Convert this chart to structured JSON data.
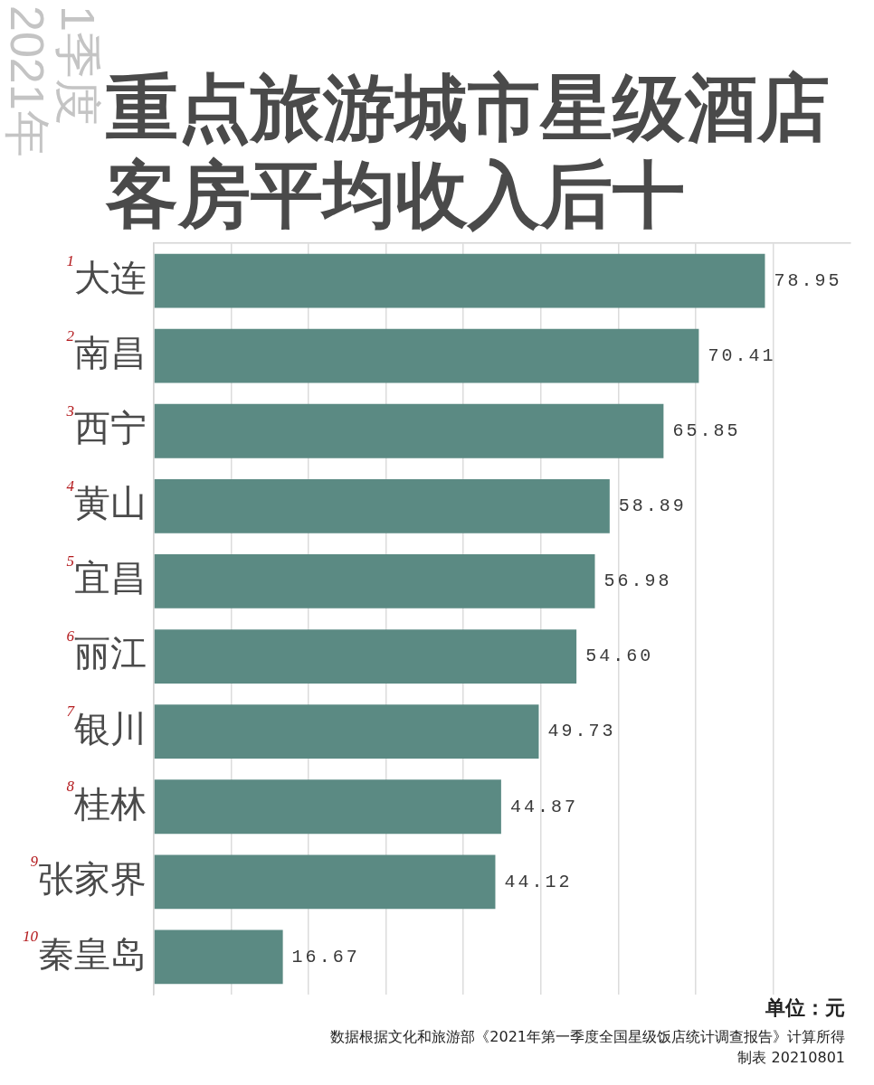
{
  "chart_data": {
    "type": "bar",
    "orientation": "horizontal",
    "title": "重点旅游城市星级酒店客房平均收入后十",
    "subtitle": "2021年 1季度",
    "categories": [
      "大连",
      "南昌",
      "西宁",
      "黄山",
      "宜昌",
      "丽江",
      "银川",
      "桂林",
      "张家界",
      "秦皇岛"
    ],
    "values": [
      78.95,
      70.41,
      65.85,
      58.89,
      56.98,
      54.6,
      49.73,
      44.87,
      44.12,
      16.67
    ],
    "value_labels": [
      "78.95",
      "70.41",
      "65.85",
      "58.89",
      "56.98",
      "54.60",
      "49.73",
      "44.87",
      "44.12",
      "16.67"
    ],
    "color": "#5b8a83",
    "xlim": [
      0,
      90
    ],
    "xticks": [
      {
        "value": 0,
        "label": null
      },
      {
        "value": 10,
        "label": null
      },
      {
        "value": 20,
        "label": null
      },
      {
        "value": 30,
        "label": null
      },
      {
        "value": 40,
        "label": null
      },
      {
        "value": 50,
        "label": null
      },
      {
        "value": 60,
        "label": null
      },
      {
        "value": 70,
        "label": null
      },
      {
        "value": 80,
        "label": null
      }
    ],
    "grid": "x",
    "tick_labels": "y",
    "annotations": [
      "1",
      "2",
      "3",
      "4",
      "5",
      "6",
      "7",
      "8",
      "9",
      "10",
      "单位：元",
      "数据根据文化和旅游部《2021年第一季度全国星级饭店统计调查报告》计算所得",
      "制表 20210801"
    ]
  }
}
